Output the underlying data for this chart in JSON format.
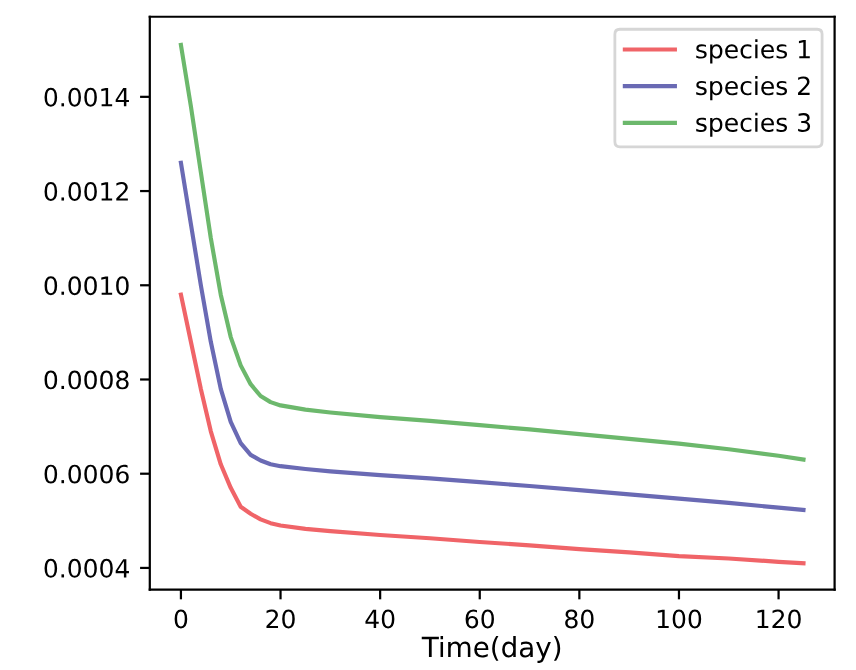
{
  "chart_data": {
    "type": "line",
    "xlabel": "Time(day)",
    "x": [
      0,
      2,
      4,
      6,
      8,
      10,
      12,
      14,
      16,
      18,
      20,
      25,
      30,
      40,
      50,
      60,
      70,
      80,
      90,
      100,
      110,
      120,
      125
    ],
    "series": [
      {
        "name": "species 1",
        "color": "#f06468",
        "values": [
          0.00098,
          0.00088,
          0.00078,
          0.00069,
          0.00062,
          0.00057,
          0.00053,
          0.000515,
          0.000503,
          0.000495,
          0.00049,
          0.000483,
          0.000478,
          0.00047,
          0.000463,
          0.000455,
          0.000448,
          0.00044,
          0.000433,
          0.000425,
          0.00042,
          0.000413,
          0.00041
        ]
      },
      {
        "name": "species 2",
        "color": "#6a6ab4",
        "values": [
          0.00126,
          0.00113,
          0.001,
          0.00088,
          0.00078,
          0.00071,
          0.000665,
          0.00064,
          0.000628,
          0.00062,
          0.000616,
          0.00061,
          0.000605,
          0.000597,
          0.00059,
          0.000582,
          0.000574,
          0.000565,
          0.000556,
          0.000547,
          0.000538,
          0.000528,
          0.000523
        ]
      },
      {
        "name": "species 3",
        "color": "#6cb86c",
        "values": [
          0.00151,
          0.00138,
          0.00124,
          0.0011,
          0.00098,
          0.00089,
          0.00083,
          0.00079,
          0.000765,
          0.000752,
          0.000745,
          0.000736,
          0.00073,
          0.00072,
          0.000712,
          0.000703,
          0.000694,
          0.000684,
          0.000674,
          0.000664,
          0.000652,
          0.000638,
          0.00063
        ]
      }
    ],
    "xlim": [
      -6.25,
      131.25
    ],
    "xticks": [
      0,
      20,
      40,
      60,
      80,
      100,
      120
    ],
    "ylim": [
      0.000354,
      0.00157
    ],
    "yticks": [
      {
        "value": 0.0004,
        "label": "0.0004"
      },
      {
        "value": 0.0006,
        "label": "0.0006"
      },
      {
        "value": 0.0008,
        "label": "0.0008"
      },
      {
        "value": 0.001,
        "label": "0.0010"
      },
      {
        "value": 0.0012,
        "label": "0.0012"
      },
      {
        "value": 0.0014,
        "label": "0.0014"
      }
    ],
    "grid": false,
    "legend": "top right",
    "marker": "none",
    "line_style": "solid"
  }
}
